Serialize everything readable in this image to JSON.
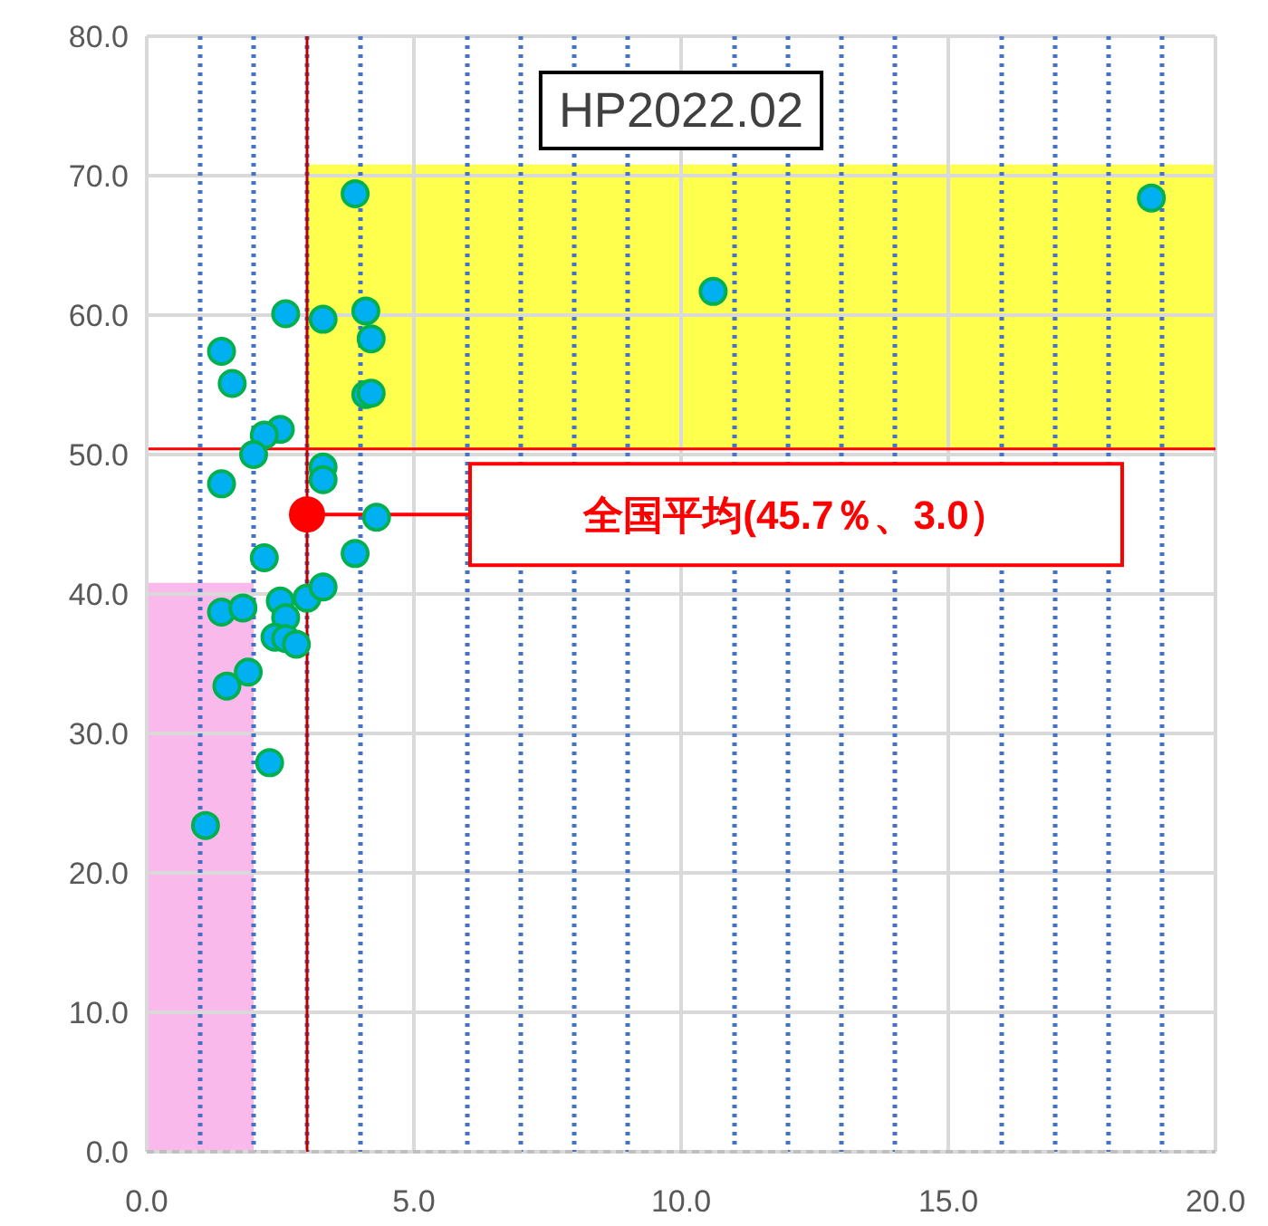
{
  "chart_data": {
    "type": "scatter",
    "title": "HP2022.02",
    "xlim": [
      0,
      20
    ],
    "ylim": [
      0,
      80
    ],
    "xticks": [
      {
        "value": 0,
        "label": "0.0"
      },
      {
        "value": 5,
        "label": "5.0"
      },
      {
        "value": 10,
        "label": "10.0"
      },
      {
        "value": 15,
        "label": "15.0"
      },
      {
        "value": 20,
        "label": "20.0"
      }
    ],
    "yticks": [
      {
        "value": 0,
        "label": "0.0"
      },
      {
        "value": 10,
        "label": "10.0"
      },
      {
        "value": 20,
        "label": "20.0"
      },
      {
        "value": 30,
        "label": "30.0"
      },
      {
        "value": 40,
        "label": "40.0"
      },
      {
        "value": 50,
        "label": "50.0"
      },
      {
        "value": 60,
        "label": "60.0"
      },
      {
        "value": 70,
        "label": "70.0"
      },
      {
        "value": 80,
        "label": "80.0"
      }
    ],
    "grid": true,
    "marker": "circle",
    "series": [
      {
        "color": "#00b0f0",
        "x": [
          1.1,
          2.3,
          1.5,
          1.9,
          1.4,
          1.8,
          2.5,
          2.6,
          2.4,
          2.6,
          2.8,
          3.0,
          3.3,
          2.2,
          3.9,
          1.4,
          1.6,
          2.6,
          3.3,
          4.1,
          4.2,
          4.1,
          4.2,
          2.5,
          2.2,
          2.0,
          3.3,
          3.3,
          1.4,
          4.3,
          3.9,
          10.6,
          18.8
        ],
        "values": [
          23.4,
          27.9,
          33.4,
          34.4,
          38.7,
          39.0,
          39.5,
          38.3,
          36.9,
          36.8,
          36.4,
          39.7,
          40.5,
          42.6,
          42.9,
          57.4,
          55.1,
          60.1,
          59.7,
          60.3,
          58.3,
          54.3,
          54.4,
          51.8,
          51.4,
          50.0,
          49.1,
          48.2,
          47.9,
          45.5,
          68.7,
          61.7,
          68.4
        ]
      },
      {
        "color": "#ff0000",
        "x": [
          3.0
        ],
        "values": [
          45.7
        ]
      }
    ],
    "bands": [
      {
        "axis": "y",
        "from": 50.4,
        "to": 70.8,
        "color": "#ffff4d"
      },
      {
        "axis": "y",
        "from": 0,
        "to": 40.8,
        "color": "#f9b9ea"
      }
    ],
    "ref_lines": [
      {
        "axis": "x",
        "value": 1,
        "color": "#4472c4",
        "line_style": "dotted"
      },
      {
        "axis": "x",
        "value": 2,
        "color": "#4472c4",
        "line_style": "dotted"
      },
      {
        "axis": "x",
        "value": 3,
        "color": "#4472c4",
        "line_style": "dotted"
      },
      {
        "axis": "x",
        "value": 4,
        "color": "#4472c4",
        "line_style": "dotted"
      },
      {
        "axis": "x",
        "value": 6,
        "color": "#4472c4",
        "line_style": "dotted"
      },
      {
        "axis": "x",
        "value": 7,
        "color": "#4472c4",
        "line_style": "dotted"
      },
      {
        "axis": "x",
        "value": 8,
        "color": "#4472c4",
        "line_style": "dotted"
      },
      {
        "axis": "x",
        "value": 9,
        "color": "#4472c4",
        "line_style": "dotted"
      },
      {
        "axis": "x",
        "value": 11,
        "color": "#4472c4",
        "line_style": "dotted"
      },
      {
        "axis": "x",
        "value": 12,
        "color": "#4472c4",
        "line_style": "dotted"
      },
      {
        "axis": "x",
        "value": 13,
        "color": "#4472c4",
        "line_style": "dotted"
      },
      {
        "axis": "x",
        "value": 14,
        "color": "#4472c4",
        "line_style": "dotted"
      },
      {
        "axis": "x",
        "value": 16,
        "color": "#4472c4",
        "line_style": "dotted"
      },
      {
        "axis": "x",
        "value": 17,
        "color": "#4472c4",
        "line_style": "dotted"
      },
      {
        "axis": "x",
        "value": 18,
        "color": "#4472c4",
        "line_style": "dotted"
      },
      {
        "axis": "x",
        "value": 19,
        "color": "#4472c4",
        "line_style": "dotted"
      },
      {
        "axis": "x",
        "value": 3.0,
        "color": "#c00000",
        "line_style": "solid"
      },
      {
        "axis": "y",
        "value": 50.4,
        "color": "#ff0000",
        "line_style": "solid"
      }
    ],
    "annotations": [
      "全国平均(45.7％、3.0）"
    ]
  }
}
